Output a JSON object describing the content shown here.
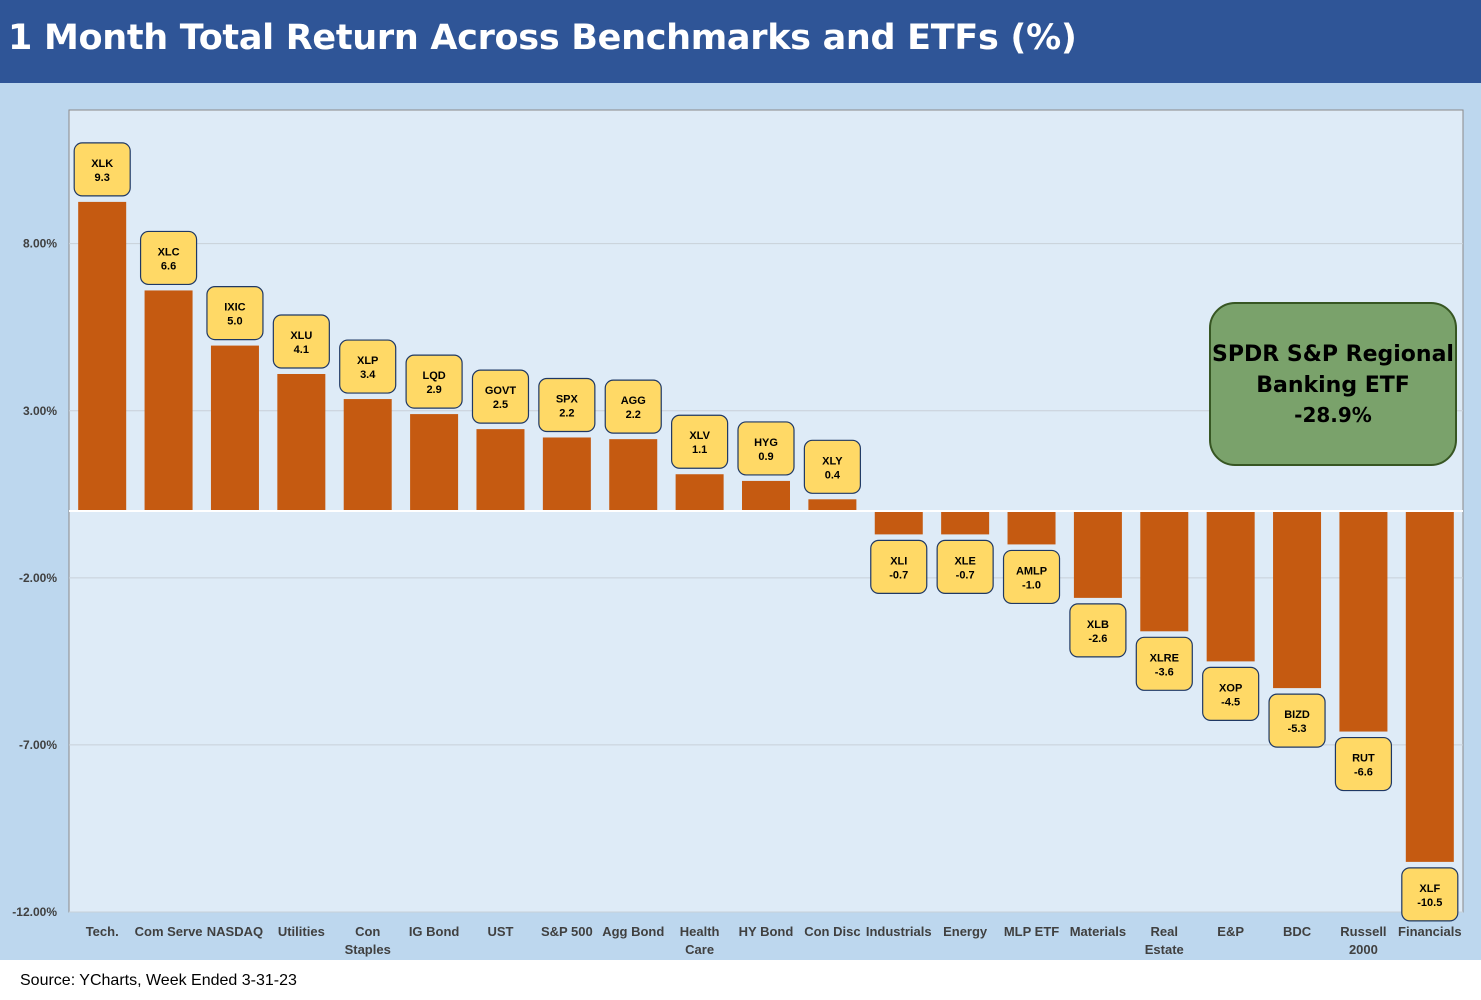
{
  "header": {
    "title": "1 Month Total Return Across Benchmarks and ETFs (%)"
  },
  "footer": {
    "source": "Source: YCharts, Week Ended 3-31-23"
  },
  "callout": {
    "lines": [
      "SPDR S&P Regional",
      "Banking ETF"
    ],
    "value": "-28.9%"
  },
  "colors": {
    "bar": "#c55a11",
    "label_fill": "#ffd966",
    "label_border": "#1f3864",
    "plot_bg": "#deebf7",
    "outer_bg": "#bdd7ee",
    "header": "#2f5597",
    "callout_fill": "#7aa26b"
  },
  "chart_data": {
    "type": "bar",
    "title": "1 Month Total Return Across Benchmarks and ETFs (%)",
    "categories": [
      [
        "Tech."
      ],
      [
        "Com Serve"
      ],
      [
        "NASDAQ"
      ],
      [
        "Utilities"
      ],
      [
        "Con",
        "Staples"
      ],
      [
        "IG Bond"
      ],
      [
        "UST"
      ],
      [
        "S&P 500"
      ],
      [
        "Agg Bond"
      ],
      [
        "Health",
        "Care"
      ],
      [
        "HY Bond"
      ],
      [
        "Con Disc"
      ],
      [
        "Industrials"
      ],
      [
        "Energy"
      ],
      [
        "MLP ETF"
      ],
      [
        "Materials"
      ],
      [
        "Real",
        "Estate"
      ],
      [
        "E&P"
      ],
      [
        "BDC"
      ],
      [
        "Russell",
        "2000"
      ],
      [
        "Financials"
      ]
    ],
    "tickers": [
      "XLK",
      "XLC",
      "IXIC",
      "XLU",
      "XLP",
      "LQD",
      "GOVT",
      "SPX",
      "AGG",
      "XLV",
      "HYG",
      "XLY",
      "XLI",
      "XLE",
      "AMLP",
      "XLB",
      "XLRE",
      "XOP",
      "BIZD",
      "RUT",
      "XLF"
    ],
    "values": [
      9.3,
      6.6,
      5.0,
      4.1,
      3.4,
      2.9,
      2.5,
      2.2,
      2.2,
      1.1,
      0.9,
      0.4,
      -0.7,
      -0.7,
      -1.0,
      -2.6,
      -3.6,
      -4.5,
      -5.3,
      -6.6,
      -10.5
    ],
    "value_labels": [
      "9.3",
      "6.6",
      "5.0",
      "4.1",
      "3.4",
      "2.9",
      "2.5",
      "2.2",
      "2.2",
      "1.1",
      "0.9",
      "0.4",
      "-0.7",
      "-0.7",
      "-1.0",
      "-2.6",
      "-3.6",
      "-4.5",
      "-5.3",
      "-6.6",
      "-10.5"
    ],
    "bar_values": [
      9.25,
      6.6,
      4.95,
      4.1,
      3.35,
      2.9,
      2.45,
      2.2,
      2.15,
      1.1,
      0.9,
      0.35,
      -0.7,
      -0.7,
      -1.0,
      -2.6,
      -3.6,
      -4.5,
      -5.3,
      -6.6,
      -10.5
    ],
    "yticks": [
      8,
      3,
      -2,
      -7,
      -12
    ],
    "ytick_labels": [
      "8.00%",
      "3.00%",
      "-2.00%",
      "-7.00%",
      "-12.00%"
    ],
    "ylim": [
      -12,
      12
    ],
    "grid": true,
    "legend": "none"
  }
}
